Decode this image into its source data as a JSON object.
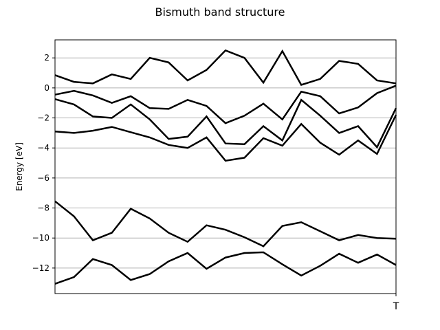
{
  "chart_data": {
    "type": "line",
    "title": "Bismuth band structure",
    "xlabel": "",
    "ylabel": "Energy [eV]",
    "ylim": [
      -13.7,
      3.2
    ],
    "yticks": [
      2,
      0,
      -2,
      -4,
      -6,
      -8,
      -10,
      -12
    ],
    "ytick_labels": [
      "2",
      "0",
      "−2",
      "−4",
      "−6",
      "−8",
      "−10",
      "−12"
    ],
    "xtick_labels": [
      "T"
    ],
    "grid": "horizontal",
    "line_color": "#000000",
    "grid_color": "#b0b0b0",
    "x": [
      0,
      1,
      2,
      3,
      4,
      5,
      6,
      7,
      8,
      9,
      10,
      11,
      12,
      13,
      14,
      15,
      16,
      17,
      18
    ],
    "series": [
      {
        "values": [
          0.85,
          0.4,
          0.3,
          0.9,
          0.6,
          2.0,
          1.7,
          0.5,
          1.2,
          2.5,
          2.0,
          0.35,
          2.45,
          0.2,
          0.6,
          1.8,
          1.6,
          0.5,
          0.3
        ]
      },
      {
        "values": [
          -0.45,
          -0.2,
          -0.5,
          -1.0,
          -0.55,
          -1.35,
          -1.4,
          -0.8,
          -1.2,
          -2.35,
          -1.85,
          -1.05,
          -2.1,
          -0.25,
          -0.55,
          -1.7,
          -1.3,
          -0.35,
          0.15
        ]
      },
      {
        "values": [
          -0.75,
          -1.1,
          -1.9,
          -2.0,
          -1.1,
          -2.1,
          -3.4,
          -3.25,
          -1.9,
          -3.7,
          -3.75,
          -2.55,
          -3.5,
          -0.8,
          -1.85,
          -3.0,
          -2.55,
          -3.95,
          -1.35
        ]
      },
      {
        "values": [
          -2.9,
          -3.0,
          -2.85,
          -2.6,
          -2.95,
          -3.3,
          -3.8,
          -4.0,
          -3.3,
          -4.85,
          -4.65,
          -3.35,
          -3.85,
          -2.4,
          -3.65,
          -4.45,
          -3.5,
          -4.4,
          -1.8
        ]
      },
      {
        "values": [
          -7.55,
          -8.55,
          -10.15,
          -9.65,
          -8.05,
          -8.7,
          -9.65,
          -10.25,
          -9.15,
          -9.45,
          -9.95,
          -10.55,
          -9.2,
          -8.95,
          -9.55,
          -10.15,
          -9.8,
          -10.0,
          -10.05
        ]
      },
      {
        "values": [
          -13.05,
          -12.6,
          -11.4,
          -11.8,
          -12.8,
          -12.4,
          -11.55,
          -11.0,
          -12.05,
          -11.3,
          -11.0,
          -10.95,
          -11.75,
          -12.5,
          -11.85,
          -11.05,
          -11.65,
          -11.1,
          -11.8
        ]
      }
    ]
  }
}
